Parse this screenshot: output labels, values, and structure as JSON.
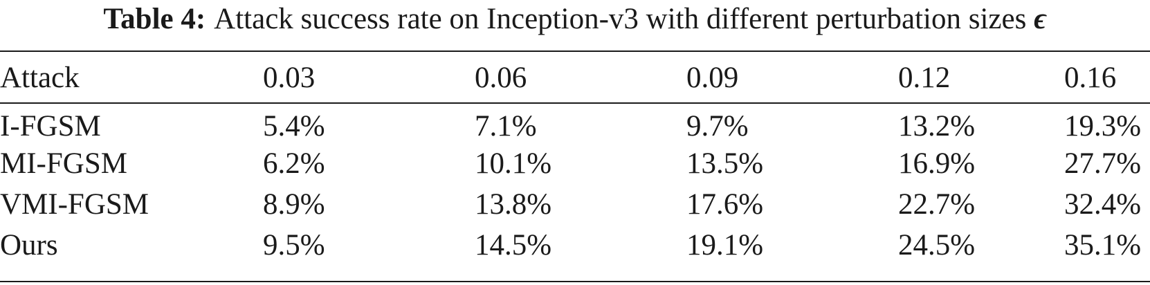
{
  "caption": {
    "label": "Table 4:",
    "text": "Attack success rate on Inception-v3 with different perturbation sizes",
    "symbol": "ϵ"
  },
  "table": {
    "header": [
      "Attack",
      "0.03",
      "0.06",
      "0.09",
      "0.12",
      "0.16"
    ],
    "rows": [
      {
        "attack": "I-FGSM",
        "values": [
          "5.4%",
          "7.1%",
          "9.7%",
          "13.2%",
          "19.3%"
        ]
      },
      {
        "attack": "MI-FGSM",
        "values": [
          "6.2%",
          "10.1%",
          "13.5%",
          "16.9%",
          "27.7%"
        ]
      },
      {
        "attack": "VMI-FGSM",
        "values": [
          "8.9%",
          "13.8%",
          "17.6%",
          "22.7%",
          "32.4%"
        ]
      },
      {
        "attack": "Ours",
        "values": [
          "9.5%",
          "14.5%",
          "19.1%",
          "24.5%",
          "35.1%"
        ]
      }
    ]
  }
}
